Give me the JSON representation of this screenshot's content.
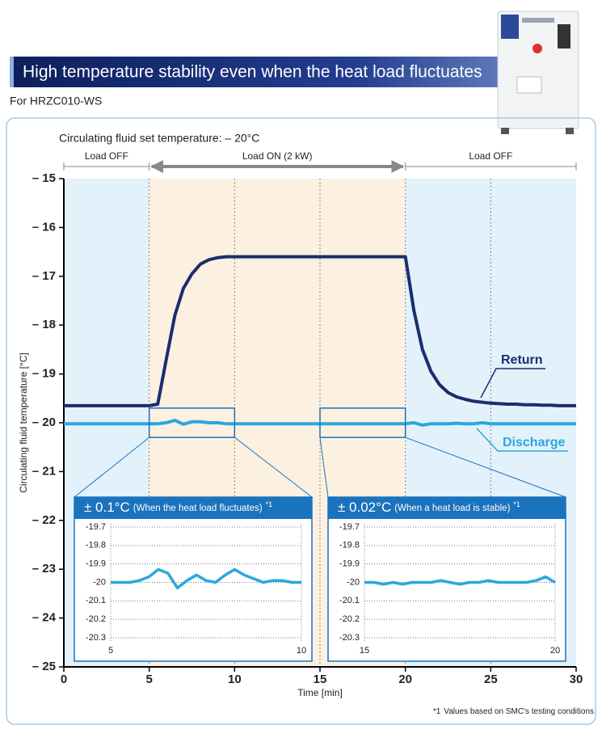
{
  "header": {
    "title": "High temperature stability even when the heat load fluctuates",
    "subtitle": "For HRZC010-WS"
  },
  "footnote": {
    "mark": "*1",
    "text": "Values based on SMC's testing conditions"
  },
  "chart_data": [
    {
      "type": "line",
      "subtitle": "Circulating fluid set temperature: – 20°C",
      "xlabel": "Time [min]",
      "ylabel": "Circulating fluid temperature [°C]",
      "xlim": [
        0,
        30
      ],
      "xticks": [
        0,
        5,
        10,
        15,
        20,
        25,
        30
      ],
      "ylim": [
        -15,
        -25
      ],
      "yticks": [
        {
          "value": -15,
          "label": "– 15"
        },
        {
          "value": -16,
          "label": "– 16"
        },
        {
          "value": -17,
          "label": "– 17"
        },
        {
          "value": -18,
          "label": "– 18"
        },
        {
          "value": -19,
          "label": "– 19"
        },
        {
          "value": -20,
          "label": "– 20"
        },
        {
          "value": -21,
          "label": "– 21"
        },
        {
          "value": -22,
          "label": "– 22"
        },
        {
          "value": -23,
          "label": "– 23"
        },
        {
          "value": -24,
          "label": "– 24"
        },
        {
          "value": -25,
          "label": "– 25"
        }
      ],
      "grid": "x",
      "regions": [
        {
          "label": "Load OFF",
          "x": [
            0,
            5
          ],
          "color": "#e3f1fb",
          "arrow": false
        },
        {
          "label": "Load ON (2 kW)",
          "x": [
            5,
            20
          ],
          "color": "#fcf0e0",
          "arrow": true
        },
        {
          "label": "Load OFF",
          "x": [
            20,
            30
          ],
          "color": "#e3f1fb",
          "arrow": false
        }
      ],
      "x": [
        0,
        0.5,
        1,
        1.5,
        2,
        2.5,
        3,
        3.5,
        4,
        4.5,
        5,
        5.5,
        6,
        6.5,
        7,
        7.5,
        8,
        8.5,
        9,
        9.5,
        10,
        10.5,
        11,
        11.5,
        12,
        12.5,
        13,
        13.5,
        14,
        14.5,
        15,
        15.5,
        16,
        16.5,
        17,
        17.5,
        18,
        18.5,
        19,
        19.5,
        20,
        20.5,
        21,
        21.5,
        22,
        22.5,
        23,
        23.5,
        24,
        24.5,
        25,
        25.5,
        26,
        26.5,
        27,
        27.5,
        28,
        28.5,
        29,
        29.5,
        30
      ],
      "series": [
        {
          "name": "Return",
          "color": "#1b2d6e",
          "values": [
            -19.65,
            -19.65,
            -19.65,
            -19.65,
            -19.65,
            -19.65,
            -19.65,
            -19.65,
            -19.65,
            -19.65,
            -19.65,
            -19.62,
            -18.7,
            -17.8,
            -17.25,
            -16.95,
            -16.75,
            -16.66,
            -16.62,
            -16.6,
            -16.6,
            -16.6,
            -16.6,
            -16.6,
            -16.6,
            -16.6,
            -16.6,
            -16.6,
            -16.6,
            -16.6,
            -16.6,
            -16.6,
            -16.6,
            -16.6,
            -16.6,
            -16.6,
            -16.6,
            -16.6,
            -16.6,
            -16.6,
            -16.6,
            -17.7,
            -18.5,
            -18.95,
            -19.22,
            -19.38,
            -19.47,
            -19.52,
            -19.56,
            -19.58,
            -19.6,
            -19.61,
            -19.62,
            -19.62,
            -19.63,
            -19.63,
            -19.64,
            -19.64,
            -19.65,
            -19.65,
            -19.65
          ]
        },
        {
          "name": "Discharge",
          "color": "#2aa7df",
          "values": [
            -20.02,
            -20.02,
            -20.02,
            -20.02,
            -20.02,
            -20.02,
            -20.02,
            -20.02,
            -20.02,
            -20.02,
            -20.02,
            -20.02,
            -20.0,
            -19.95,
            -20.03,
            -19.98,
            -19.98,
            -20.0,
            -20.0,
            -20.02,
            -20.02,
            -20.02,
            -20.02,
            -20.02,
            -20.02,
            -20.02,
            -20.02,
            -20.02,
            -20.02,
            -20.02,
            -20.02,
            -20.02,
            -20.02,
            -20.02,
            -20.02,
            -20.02,
            -20.02,
            -20.02,
            -20.02,
            -20.02,
            -20.02,
            -20.0,
            -20.05,
            -20.02,
            -20.02,
            -20.02,
            -20.01,
            -20.02,
            -20.02,
            -20.0,
            -20.02,
            -20.02,
            -20.02,
            -20.02,
            -20.02,
            -20.02,
            -20.02,
            -20.02,
            -20.02,
            -20.02,
            -20.02
          ]
        }
      ]
    },
    {
      "type": "line",
      "title": "± 0.1°C",
      "subtitle": "(When the heat load fluctuates)",
      "note": "*1",
      "xlim": [
        5,
        10
      ],
      "xticks": [
        5,
        10
      ],
      "ylim": [
        -19.7,
        -20.3
      ],
      "yticks": [
        -19.7,
        -19.8,
        -19.9,
        -20,
        -20.1,
        -20.2,
        -20.3
      ],
      "grid": "y",
      "x": [
        5,
        5.25,
        5.5,
        5.75,
        6,
        6.25,
        6.5,
        6.75,
        7,
        7.25,
        7.5,
        7.75,
        8,
        8.25,
        8.5,
        8.75,
        9,
        9.25,
        9.5,
        9.75,
        10
      ],
      "series": [
        {
          "color": "#2aa7df",
          "values": [
            -20.0,
            -20.0,
            -20.0,
            -19.99,
            -19.97,
            -19.93,
            -19.95,
            -20.03,
            -19.99,
            -19.96,
            -19.99,
            -20.0,
            -19.96,
            -19.93,
            -19.96,
            -19.98,
            -20.0,
            -19.99,
            -19.99,
            -20.0,
            -20.0
          ]
        }
      ]
    },
    {
      "type": "line",
      "title": "± 0.02°C",
      "subtitle": "(When a heat load is stable)",
      "note": "*1",
      "xlim": [
        15,
        20
      ],
      "xticks": [
        15,
        20
      ],
      "ylim": [
        -19.7,
        -20.3
      ],
      "yticks": [
        -19.7,
        -19.8,
        -19.9,
        -20,
        -20.1,
        -20.2,
        -20.3
      ],
      "grid": "y",
      "x": [
        15,
        15.25,
        15.5,
        15.75,
        16,
        16.25,
        16.5,
        16.75,
        17,
        17.25,
        17.5,
        17.75,
        18,
        18.25,
        18.5,
        18.75,
        19,
        19.25,
        19.5,
        19.75,
        20
      ],
      "series": [
        {
          "color": "#2aa7df",
          "values": [
            -20.0,
            -20.0,
            -20.01,
            -20.0,
            -20.01,
            -20.0,
            -20.0,
            -20.0,
            -19.99,
            -20.0,
            -20.01,
            -20.0,
            -20.0,
            -19.99,
            -20.0,
            -20.0,
            -20.0,
            -20.0,
            -19.99,
            -19.97,
            -20.0
          ]
        }
      ]
    }
  ]
}
